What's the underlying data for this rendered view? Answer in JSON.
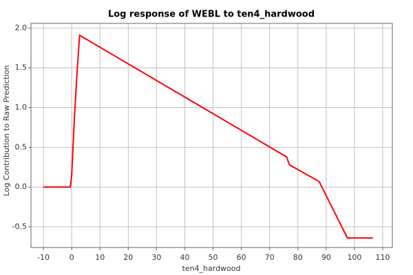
{
  "chart_data": {
    "type": "line",
    "title": "Log response of WEBL to ten4_hardwood",
    "x_label": "ten4_hardwood",
    "y_label": "Log Contribution to Raw Prediction",
    "series": [
      {
        "name": "WEBL",
        "color": "#ff0000",
        "x": [
          -10,
          -0.5,
          0,
          1,
          2,
          2.8,
          76,
          77,
          87.5,
          97.5,
          106.5
        ],
        "values": [
          0,
          0,
          0.15,
          0.9,
          1.5,
          1.91,
          0.38,
          0.28,
          0.07,
          -0.64,
          -0.64
        ]
      }
    ],
    "xlim": [
      -14.4,
      113.4
    ],
    "xticks": [
      -10,
      0,
      10,
      20,
      30,
      40,
      50,
      60,
      70,
      80,
      90,
      100,
      110
    ],
    "ylim": [
      -0.76,
      2.06
    ],
    "yticks": [
      {
        "value": -0.5,
        "label": "-0.5"
      },
      {
        "value": 0,
        "label": "0.0"
      },
      {
        "value": 0.5,
        "label": "0.5"
      },
      {
        "value": 1,
        "label": "1.0"
      },
      {
        "value": 1.5,
        "label": "1.5"
      },
      {
        "value": 2,
        "label": "2.0"
      }
    ],
    "grid": true
  }
}
